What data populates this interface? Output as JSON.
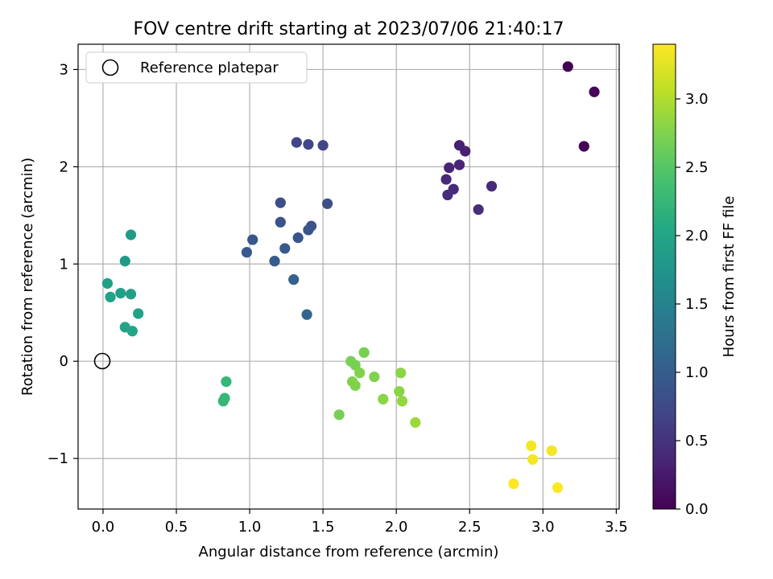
{
  "chart_data": {
    "type": "scatter",
    "title": "FOV centre drift starting at 2023/07/06 21:40:17",
    "xlabel": "Angular distance from reference (arcmin)",
    "ylabel": "Rotation from reference (arcmin)",
    "xlim": [
      -0.17,
      3.52
    ],
    "ylim": [
      -1.52,
      3.26
    ],
    "xticks": [
      0.0,
      0.5,
      1.0,
      1.5,
      2.0,
      2.5,
      3.0,
      3.5
    ],
    "xtick_labels": [
      "0.0",
      "0.5",
      "1.0",
      "1.5",
      "2.0",
      "2.5",
      "3.0",
      "3.5"
    ],
    "yticks": [
      -1,
      0,
      1,
      2,
      3
    ],
    "ytick_labels": [
      "−1",
      "0",
      "1",
      "2",
      "3"
    ],
    "grid": true,
    "legend": {
      "placement": "upper-left",
      "entries": [
        "Reference platepar"
      ]
    },
    "reference_point": {
      "x": 0.0,
      "y": 0.0
    },
    "colorbar": {
      "label": "Hours from first FF file",
      "range": [
        0.0,
        3.4
      ],
      "ticks": [
        0.0,
        0.5,
        1.0,
        1.5,
        2.0,
        2.5,
        3.0
      ],
      "tick_labels": [
        "0.0",
        "0.5",
        "1.0",
        "1.5",
        "2.0",
        "2.5",
        "3.0"
      ],
      "colormap": "viridis"
    },
    "points": [
      {
        "x": 3.17,
        "y": 3.03,
        "c": 0.0
      },
      {
        "x": 3.35,
        "y": 2.77,
        "c": 0.05
      },
      {
        "x": 3.28,
        "y": 2.21,
        "c": 0.05
      },
      {
        "x": 2.43,
        "y": 2.22,
        "c": 0.3
      },
      {
        "x": 2.47,
        "y": 2.16,
        "c": 0.3
      },
      {
        "x": 2.43,
        "y": 2.02,
        "c": 0.35
      },
      {
        "x": 2.36,
        "y": 1.99,
        "c": 0.35
      },
      {
        "x": 2.34,
        "y": 1.87,
        "c": 0.4
      },
      {
        "x": 2.65,
        "y": 1.8,
        "c": 0.4
      },
      {
        "x": 2.39,
        "y": 1.77,
        "c": 0.4
      },
      {
        "x": 2.35,
        "y": 1.71,
        "c": 0.45
      },
      {
        "x": 2.56,
        "y": 1.56,
        "c": 0.45
      },
      {
        "x": 1.32,
        "y": 2.25,
        "c": 0.7
      },
      {
        "x": 1.4,
        "y": 2.23,
        "c": 0.7
      },
      {
        "x": 1.5,
        "y": 2.22,
        "c": 0.7
      },
      {
        "x": 1.21,
        "y": 1.63,
        "c": 0.8
      },
      {
        "x": 1.53,
        "y": 1.62,
        "c": 0.8
      },
      {
        "x": 1.21,
        "y": 1.43,
        "c": 0.85
      },
      {
        "x": 1.42,
        "y": 1.39,
        "c": 0.85
      },
      {
        "x": 1.4,
        "y": 1.35,
        "c": 0.9
      },
      {
        "x": 1.33,
        "y": 1.27,
        "c": 0.9
      },
      {
        "x": 1.02,
        "y": 1.25,
        "c": 0.9
      },
      {
        "x": 1.24,
        "y": 1.16,
        "c": 0.95
      },
      {
        "x": 0.98,
        "y": 1.12,
        "c": 0.95
      },
      {
        "x": 1.17,
        "y": 1.03,
        "c": 1.0
      },
      {
        "x": 1.3,
        "y": 0.84,
        "c": 1.05
      },
      {
        "x": 1.39,
        "y": 0.48,
        "c": 1.1
      },
      {
        "x": 0.19,
        "y": 1.3,
        "c": 1.85
      },
      {
        "x": 0.15,
        "y": 1.03,
        "c": 1.85
      },
      {
        "x": 0.03,
        "y": 0.8,
        "c": 1.9
      },
      {
        "x": 0.12,
        "y": 0.7,
        "c": 1.9
      },
      {
        "x": 0.19,
        "y": 0.69,
        "c": 1.9
      },
      {
        "x": 0.05,
        "y": 0.66,
        "c": 1.95
      },
      {
        "x": 0.24,
        "y": 0.49,
        "c": 1.95
      },
      {
        "x": 0.15,
        "y": 0.35,
        "c": 2.0
      },
      {
        "x": 0.2,
        "y": 0.31,
        "c": 2.0
      },
      {
        "x": 0.84,
        "y": -0.21,
        "c": 2.25
      },
      {
        "x": 0.83,
        "y": -0.38,
        "c": 2.25
      },
      {
        "x": 0.82,
        "y": -0.41,
        "c": 2.25
      },
      {
        "x": 1.69,
        "y": 0.0,
        "c": 2.7
      },
      {
        "x": 1.78,
        "y": 0.09,
        "c": 2.7
      },
      {
        "x": 1.72,
        "y": -0.04,
        "c": 2.7
      },
      {
        "x": 1.75,
        "y": -0.12,
        "c": 2.75
      },
      {
        "x": 1.7,
        "y": -0.21,
        "c": 2.75
      },
      {
        "x": 1.72,
        "y": -0.25,
        "c": 2.75
      },
      {
        "x": 1.85,
        "y": -0.16,
        "c": 2.75
      },
      {
        "x": 2.03,
        "y": -0.12,
        "c": 2.8
      },
      {
        "x": 2.02,
        "y": -0.31,
        "c": 2.8
      },
      {
        "x": 1.91,
        "y": -0.39,
        "c": 2.8
      },
      {
        "x": 2.04,
        "y": -0.41,
        "c": 2.85
      },
      {
        "x": 1.61,
        "y": -0.55,
        "c": 2.7
      },
      {
        "x": 2.13,
        "y": -0.63,
        "c": 2.9
      },
      {
        "x": 2.92,
        "y": -0.87,
        "c": 3.35
      },
      {
        "x": 3.06,
        "y": -0.92,
        "c": 3.35
      },
      {
        "x": 2.93,
        "y": -1.01,
        "c": 3.35
      },
      {
        "x": 2.8,
        "y": -1.26,
        "c": 3.4
      },
      {
        "x": 3.1,
        "y": -1.3,
        "c": 3.4
      }
    ]
  }
}
